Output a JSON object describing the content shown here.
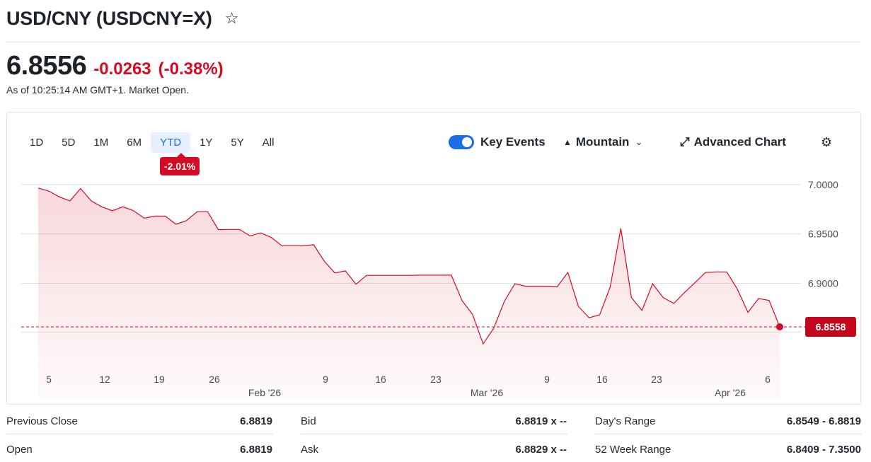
{
  "header": {
    "title": "USD/CNY (USDCNY=X)",
    "price": "6.8556",
    "change": "-0.0263",
    "change_pct": "(-0.38%)",
    "as_of": "As of 10:25:14 AM GMT+1. Market Open."
  },
  "chart_toolbar": {
    "ranges": [
      "1D",
      "5D",
      "1M",
      "6M",
      "YTD",
      "1Y",
      "5Y",
      "All"
    ],
    "active_range": "YTD",
    "ytd_badge": "-2.01%",
    "key_events_label": "Key Events",
    "key_events_on": true,
    "chart_type_label": "Mountain",
    "advanced_chart_label": "Advanced Chart"
  },
  "colors": {
    "negative": "#d60a22",
    "accent": "#1a6ee6"
  },
  "chart_data": {
    "type": "area",
    "y_ticks": [
      "7.0000",
      "6.9500",
      "6.9000"
    ],
    "ylim": [
      6.84,
      7.02
    ],
    "current_label": "6.8558",
    "reference_line": 6.8558,
    "x_tick_labels": [
      "5",
      "12",
      "19",
      "26",
      "9",
      "16",
      "23",
      "9",
      "16",
      "23",
      "6"
    ],
    "month_labels": [
      "Feb '26",
      "Mar '26",
      "Apr '26"
    ],
    "series": [
      {
        "values": [
          6.9965,
          6.9935,
          6.9875,
          6.9835,
          6.996,
          6.9835,
          6.9775,
          6.9735,
          6.9775,
          6.9735,
          6.966,
          6.968,
          6.968,
          6.9598,
          6.9635,
          6.9725,
          6.9725,
          6.9543,
          6.9545,
          6.9545,
          6.948,
          6.951,
          6.9465,
          6.938,
          6.938,
          6.938,
          6.939,
          6.9225,
          6.9105,
          6.9125,
          6.899,
          6.908,
          6.908,
          6.908,
          6.908,
          6.908,
          6.9082,
          6.9082,
          6.9082,
          6.9082,
          6.8825,
          6.8685,
          6.8385,
          6.8545,
          6.8815,
          6.8995,
          6.897,
          6.897,
          6.897,
          6.8965,
          6.911,
          6.8765,
          6.865,
          6.868,
          6.8965,
          6.9555,
          6.8855,
          6.8725,
          6.8995,
          6.8855,
          6.8795,
          6.8905,
          6.9005,
          6.911,
          6.9115,
          6.9115,
          6.894,
          6.8705,
          6.8845,
          6.8825,
          6.8558
        ]
      }
    ]
  },
  "stats": [
    {
      "label": "Previous Close",
      "value": "6.8819"
    },
    {
      "label": "Bid",
      "value": "6.8819 x --"
    },
    {
      "label": "Day's Range",
      "value": "6.8549 - 6.8819"
    },
    {
      "label": "Open",
      "value": "6.8819"
    },
    {
      "label": "Ask",
      "value": "6.8829 x --"
    },
    {
      "label": "52 Week Range",
      "value": "6.8409 - 7.3500"
    }
  ]
}
